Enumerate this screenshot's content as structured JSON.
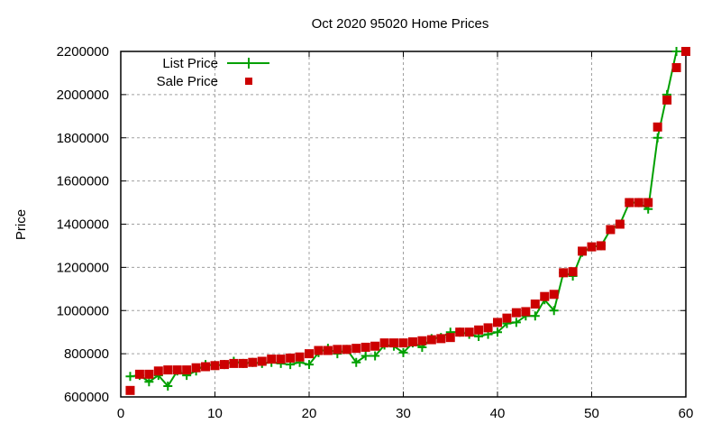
{
  "chart_data": {
    "type": "line",
    "title": "Oct 2020 95020 Home Prices",
    "xlabel": "",
    "ylabel": "Price",
    "xlim": [
      0,
      60
    ],
    "ylim": [
      600000,
      2200000
    ],
    "xticks": [
      0,
      10,
      20,
      30,
      40,
      50,
      60
    ],
    "yticks": [
      600000,
      800000,
      1000000,
      1200000,
      1400000,
      1600000,
      1800000,
      2000000,
      2200000
    ],
    "grid": true,
    "legend_position": "top-left",
    "x": [
      1,
      2,
      3,
      4,
      5,
      6,
      7,
      8,
      9,
      10,
      11,
      12,
      13,
      14,
      15,
      16,
      17,
      18,
      19,
      20,
      21,
      22,
      23,
      24,
      25,
      26,
      27,
      28,
      29,
      30,
      31,
      32,
      33,
      34,
      35,
      36,
      37,
      38,
      39,
      40,
      41,
      42,
      43,
      44,
      45,
      46,
      47,
      48,
      49,
      50,
      51,
      52,
      53,
      54,
      55,
      56,
      57,
      58,
      59,
      60
    ],
    "series": [
      {
        "name": "List Price",
        "style": "linespoints",
        "color": "#00a000",
        "values": [
          695000,
          700000,
          670000,
          700000,
          650000,
          720000,
          700000,
          720000,
          750000,
          745000,
          750000,
          765000,
          755000,
          760000,
          755000,
          760000,
          755000,
          750000,
          760000,
          750000,
          805000,
          825000,
          800000,
          820000,
          760000,
          790000,
          790000,
          840000,
          835000,
          805000,
          850000,
          830000,
          870000,
          875000,
          900000,
          900000,
          890000,
          880000,
          890000,
          900000,
          940000,
          945000,
          975000,
          975000,
          1050000,
          1000000,
          1175000,
          1160000,
          1270000,
          1295000,
          1300000,
          1375000,
          1400000,
          1500000,
          1500000,
          1470000,
          1800000,
          2000000,
          2200000,
          2200000
        ]
      },
      {
        "name": "Sale Price",
        "style": "points",
        "color": "#cc0000",
        "values": [
          630000,
          705000,
          705000,
          720000,
          725000,
          725000,
          725000,
          735000,
          740000,
          745000,
          750000,
          755000,
          755000,
          760000,
          765000,
          775000,
          775000,
          780000,
          785000,
          800000,
          815000,
          815000,
          820000,
          820000,
          825000,
          830000,
          835000,
          850000,
          850000,
          850000,
          855000,
          860000,
          865000,
          870000,
          875000,
          900000,
          900000,
          910000,
          920000,
          945000,
          965000,
          990000,
          995000,
          1030000,
          1065000,
          1075000,
          1175000,
          1180000,
          1275000,
          1295000,
          1300000,
          1375000,
          1400000,
          1500000,
          1500000,
          1500000,
          1850000,
          1975000,
          2125000,
          2200000
        ]
      }
    ]
  }
}
